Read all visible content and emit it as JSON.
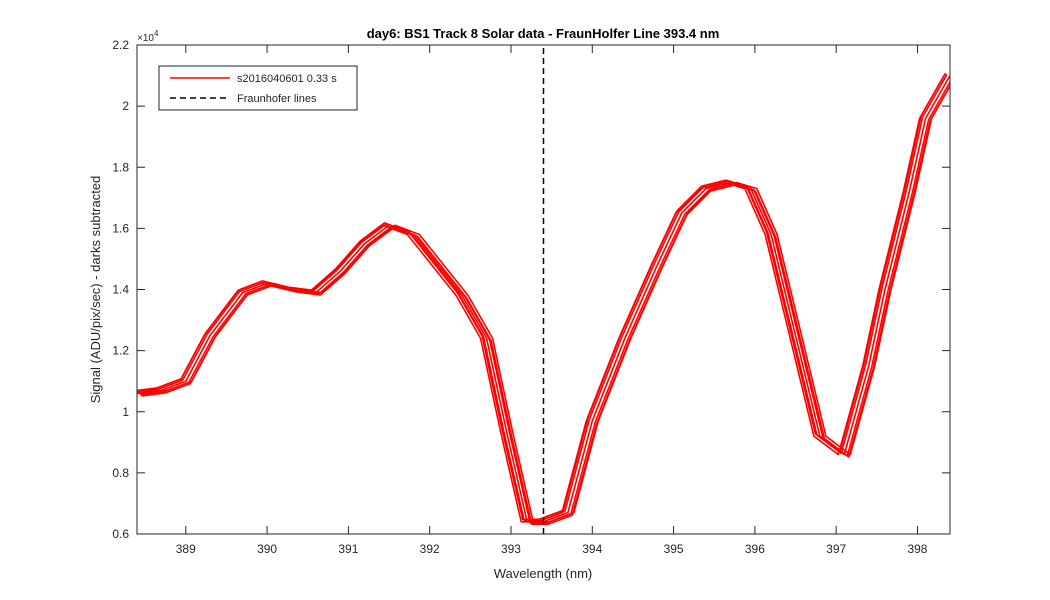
{
  "chart_data": {
    "type": "line",
    "title": "day6: BS1  Track 8 Solar data - FraunHolfer Line 393.4 nm",
    "xlabel": "Wavelength (nm)",
    "ylabel": "Signal (ADU/pix/sec) - darks subtracted",
    "y_exponent_label": "×10",
    "y_exponent_power": "4",
    "y_scale_multiplier": 10000,
    "xlim": [
      388.4,
      398.4
    ],
    "ylim": [
      0.6,
      2.2
    ],
    "x_ticks": [
      389,
      390,
      391,
      392,
      393,
      394,
      395,
      396,
      397,
      398
    ],
    "x_tick_labels": [
      "389",
      "390",
      "391",
      "392",
      "393",
      "394",
      "395",
      "396",
      "397",
      "398"
    ],
    "y_ticks": [
      0.6,
      0.8,
      1.0,
      1.2,
      1.4,
      1.6,
      1.8,
      2.0,
      2.2
    ],
    "y_tick_labels": [
      "0.6",
      "0.8",
      "1",
      "1.2",
      "1.4",
      "1.6",
      "1.8",
      "2",
      "2.2"
    ],
    "grid": false,
    "legend_position": "top-left",
    "series": [
      {
        "name": "s2016040601 0.33 s",
        "color": "#ff0000",
        "style": "solid",
        "x": [
          388.4,
          388.7,
          389.0,
          389.3,
          389.7,
          390.0,
          390.3,
          390.6,
          390.9,
          391.2,
          391.5,
          391.8,
          392.1,
          392.4,
          392.7,
          392.95,
          393.2,
          393.4,
          393.7,
          394.0,
          394.4,
          394.8,
          395.1,
          395.4,
          395.7,
          395.95,
          396.2,
          396.5,
          396.8,
          397.1,
          397.4,
          397.6,
          397.9,
          398.1,
          398.4
        ],
        "y": [
          1.06,
          1.07,
          1.1,
          1.25,
          1.39,
          1.42,
          1.4,
          1.39,
          1.46,
          1.55,
          1.61,
          1.58,
          1.48,
          1.38,
          1.24,
          0.93,
          0.64,
          0.64,
          0.67,
          0.97,
          1.24,
          1.48,
          1.65,
          1.73,
          1.75,
          1.73,
          1.58,
          1.25,
          0.92,
          0.86,
          1.15,
          1.4,
          1.72,
          1.96,
          2.1
        ]
      },
      {
        "name": "Fraunhofer lines",
        "color": "#000000",
        "style": "dashed",
        "x": [
          393.4,
          393.4
        ],
        "y": [
          0.6,
          2.2
        ]
      }
    ]
  }
}
